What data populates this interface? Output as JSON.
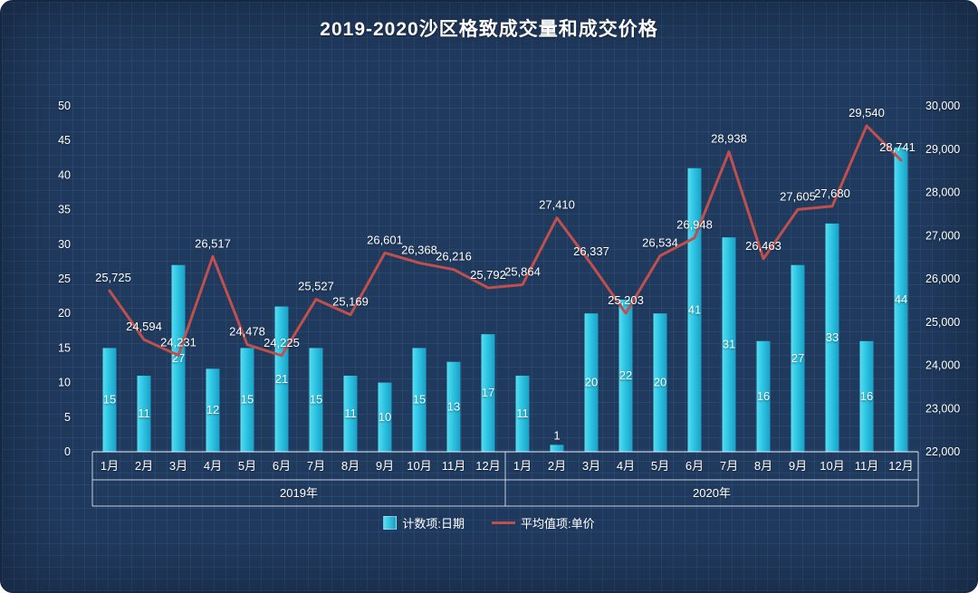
{
  "title": "2019-2020沙区格致成交量和成交价格",
  "theme": {
    "background": "#203a5e",
    "bar_color_light": "#55def2",
    "bar_color_dark": "#1a9fc7",
    "line_color": "#c0504d",
    "text_color": "#ffffff",
    "axis_line_color": "#dce6f2"
  },
  "legend": [
    {
      "label": "计数项:日期",
      "type": "bar"
    },
    {
      "label": "平均值项:单价",
      "type": "line"
    }
  ],
  "chart_data": {
    "type": "combo",
    "categories": [
      "1月",
      "2月",
      "3月",
      "4月",
      "5月",
      "6月",
      "7月",
      "8月",
      "9月",
      "10月",
      "11月",
      "12月",
      "1月",
      "2月",
      "3月",
      "4月",
      "5月",
      "6月",
      "7月",
      "8月",
      "9月",
      "10月",
      "11月",
      "12月"
    ],
    "group_labels": [
      "2019年",
      "2020年"
    ],
    "series": [
      {
        "name": "计数项:日期",
        "type": "bar",
        "axis": "left",
        "values": [
          15,
          11,
          27,
          12,
          15,
          21,
          15,
          11,
          10,
          15,
          13,
          17,
          11,
          1,
          20,
          22,
          20,
          41,
          31,
          16,
          27,
          33,
          16,
          44
        ]
      },
      {
        "name": "平均值项:单价",
        "type": "line",
        "axis": "right",
        "values": [
          25725,
          24594,
          24231,
          26517,
          24478,
          24225,
          25527,
          25169,
          26601,
          26368,
          26216,
          25792,
          25864,
          27410,
          26337,
          25203,
          26534,
          26948,
          28938,
          26463,
          27605,
          27680,
          29540,
          28741
        ]
      }
    ],
    "left_axis": {
      "min": 0,
      "max": 50,
      "step": 5
    },
    "right_axis": {
      "min": 22000,
      "max": 30000,
      "step": 1000
    },
    "grid": false,
    "legend_position": "bottom"
  }
}
